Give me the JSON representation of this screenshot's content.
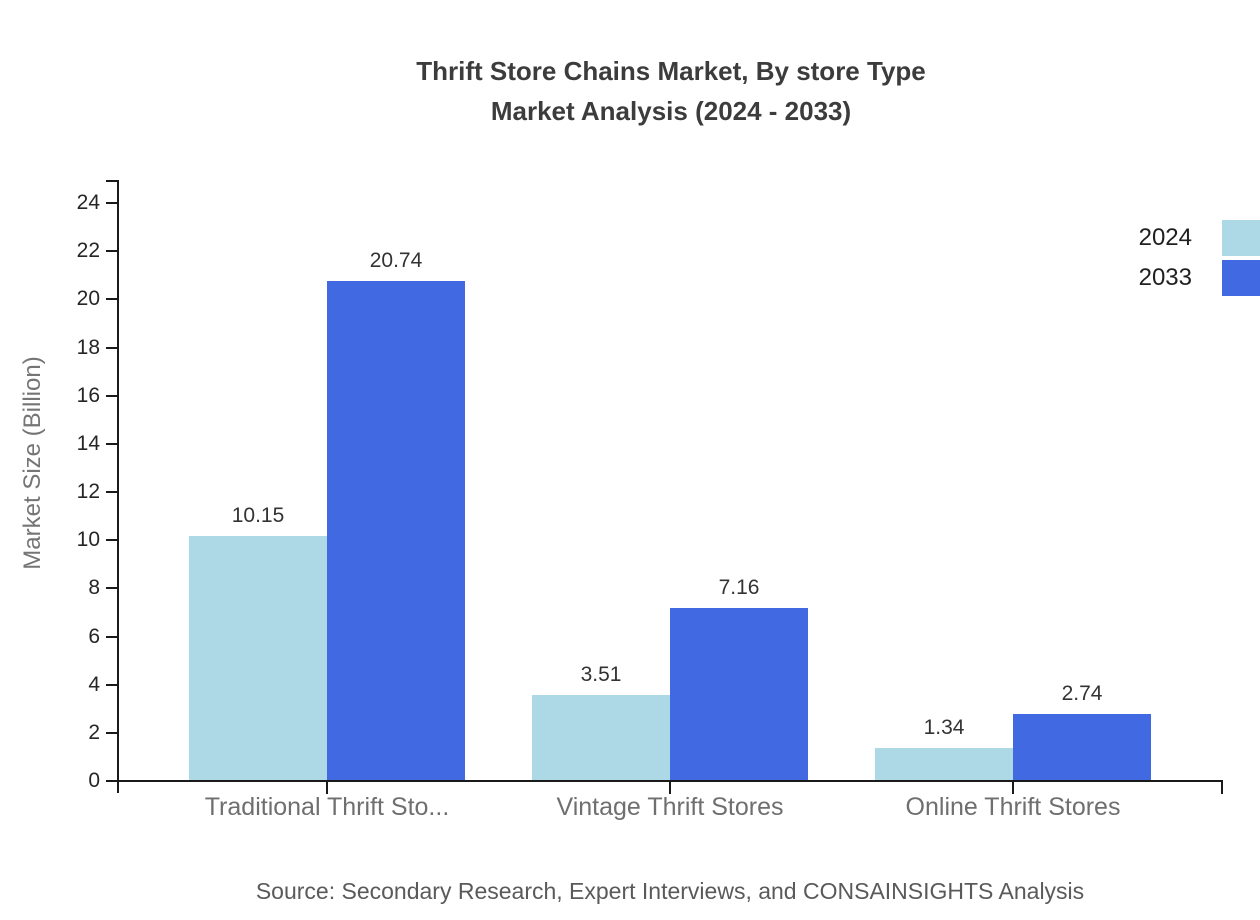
{
  "title": {
    "line1": "Thrift Store Chains Market, By store Type",
    "line2": "Market Analysis (2024 - 2033)"
  },
  "legend": [
    {
      "label": "2024",
      "color": "#ADD8E6"
    },
    {
      "label": "2033",
      "color": "#4169E1"
    }
  ],
  "chart_data": {
    "type": "bar",
    "title": "Thrift Store Chains Market, By store Type Market Analysis (2024 - 2033)",
    "categories": [
      "Traditional Thrift Sto...",
      "Vintage Thrift Stores",
      "Online Thrift Stores"
    ],
    "series": [
      {
        "name": "2024",
        "color": "#ADD8E6",
        "values": [
          10.15,
          3.51,
          1.34
        ]
      },
      {
        "name": "2033",
        "color": "#4169E1",
        "values": [
          20.74,
          7.16,
          2.74
        ]
      }
    ],
    "xlabel": "",
    "ylabel": "Market Size (Billion)",
    "ylim": [
      0,
      24
    ],
    "y_ticks": [
      0,
      2,
      4,
      6,
      8,
      10,
      12,
      14,
      16,
      18,
      20,
      22,
      24
    ],
    "grid": false,
    "legend_position": "top-right",
    "bar_value_labels": true
  },
  "source": "Source: Secondary Research, Expert Interviews, and CONSAINSIGHTS Analysis"
}
